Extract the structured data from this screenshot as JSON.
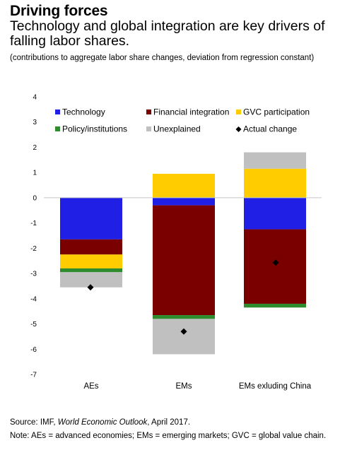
{
  "header": {
    "title": "Driving forces",
    "subtitle": "Technology and global integration are key drivers of falling labor shares.",
    "note": "(contributions to aggregate labor share changes, deviation from regression constant)"
  },
  "footer": {
    "source_prefix": "Source: IMF, ",
    "source_italic": "World Economic Outlook",
    "source_suffix": ", April 2017.",
    "note": "Note: AEs = advanced economies; EMs = emerging markets; GVC = global value chain."
  },
  "chart_data": {
    "type": "bar",
    "stacked": true,
    "categories": [
      "AEs",
      "EMs",
      "EMs exluding China"
    ],
    "ylim": [
      -7,
      4
    ],
    "yticks": [
      4,
      3,
      2,
      1,
      0,
      -1,
      -2,
      -3,
      -4,
      -5,
      -6,
      -7
    ],
    "grid": false,
    "legend_position": "top",
    "series": [
      {
        "name": "Technology",
        "color": "#1f1fe6",
        "values": [
          -1.65,
          -0.3,
          -1.25
        ]
      },
      {
        "name": "Financial integration",
        "color": "#7a0000",
        "values": [
          -0.6,
          -4.35,
          -2.95
        ]
      },
      {
        "name": "GVC participation",
        "color": "#ffcc00",
        "values": [
          -0.55,
          0.95,
          1.15
        ]
      },
      {
        "name": "Policy/institutions",
        "color": "#2e8b2e",
        "values": [
          -0.15,
          -0.15,
          -0.15
        ]
      },
      {
        "name": "Unexplained",
        "color": "#c0c0c0",
        "values": [
          -0.6,
          -1.4,
          0.65
        ]
      }
    ],
    "actual_change": {
      "name": "Actual change",
      "color": "#000000",
      "values": [
        -3.55,
        -5.3,
        -2.57
      ]
    }
  }
}
